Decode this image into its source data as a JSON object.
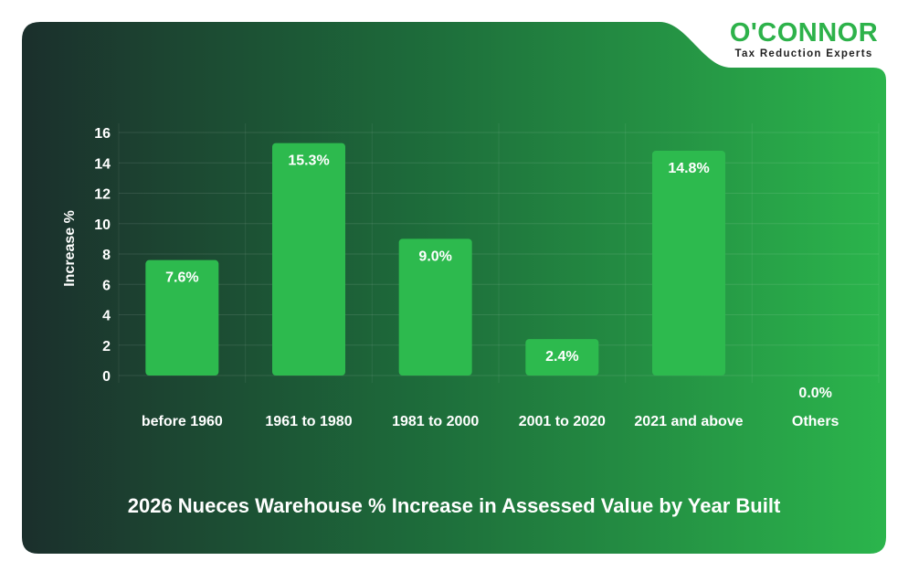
{
  "brand": {
    "name": "O'CONNOR",
    "tagline": "Tax Reduction Experts"
  },
  "colors": {
    "bar": "#2dba4e",
    "background_dark": "#1b2f2c",
    "background_light": "#2bb54c",
    "text": "#ffffff"
  },
  "chart_data": {
    "type": "bar",
    "title": "2026 Nueces Warehouse % Increase in Assessed Value by Year Built",
    "ylabel": "Increase %",
    "xlabel": "",
    "categories": [
      "before 1960",
      "1961 to 1980",
      "1981 to 2000",
      "2001 to 2020",
      "2021 and above",
      "Others"
    ],
    "values": [
      7.6,
      15.3,
      9.0,
      2.4,
      14.8,
      0.0
    ],
    "data_labels": [
      "7.6%",
      "15.3%",
      "9.0%",
      "2.4%",
      "14.8%",
      "0.0%"
    ],
    "y_ticks": [
      "0",
      "2",
      "4",
      "6",
      "8",
      "10",
      "12",
      "14",
      "16"
    ],
    "ylim": [
      0,
      16
    ],
    "grid": true,
    "legend": "none"
  }
}
